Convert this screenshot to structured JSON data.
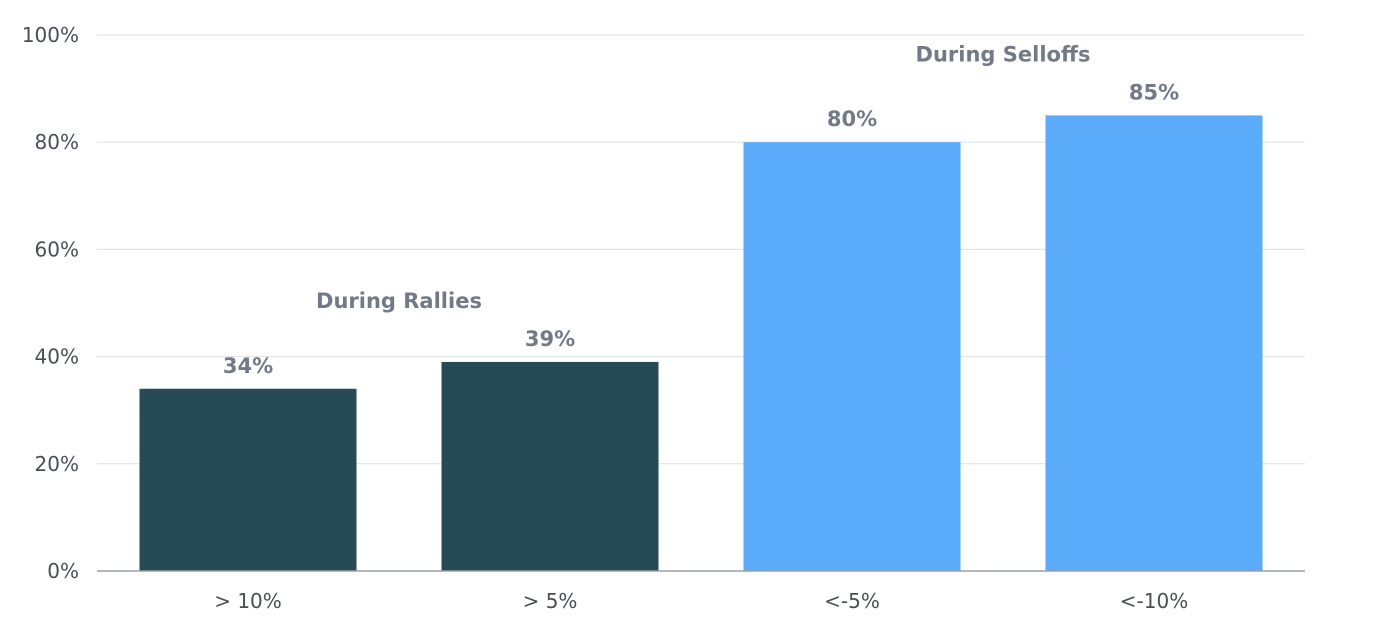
{
  "chart_data": {
    "type": "bar",
    "categories": [
      "> 10%",
      "> 5%",
      "<-5%",
      "<-10%"
    ],
    "values": [
      34,
      39,
      80,
      85
    ],
    "data_labels": [
      "34%",
      "39%",
      "80%",
      "85%"
    ],
    "bar_colors": [
      "#264b57",
      "#264b57",
      "#5aabfa",
      "#5aabfa"
    ],
    "groups": [
      {
        "label": "During Rallies",
        "categories": [
          "> 10%",
          "> 5%"
        ]
      },
      {
        "label": "During Selloffs",
        "categories": [
          "<-5%",
          "<-10%"
        ]
      }
    ],
    "ylim": [
      0,
      100
    ],
    "yticks": [
      0,
      20,
      40,
      60,
      80,
      100
    ],
    "ytick_labels": [
      "0%",
      "20%",
      "40%",
      "60%",
      "80%",
      "100%"
    ],
    "grid": true,
    "legend": false,
    "title": "",
    "xlabel": "",
    "ylabel": ""
  }
}
